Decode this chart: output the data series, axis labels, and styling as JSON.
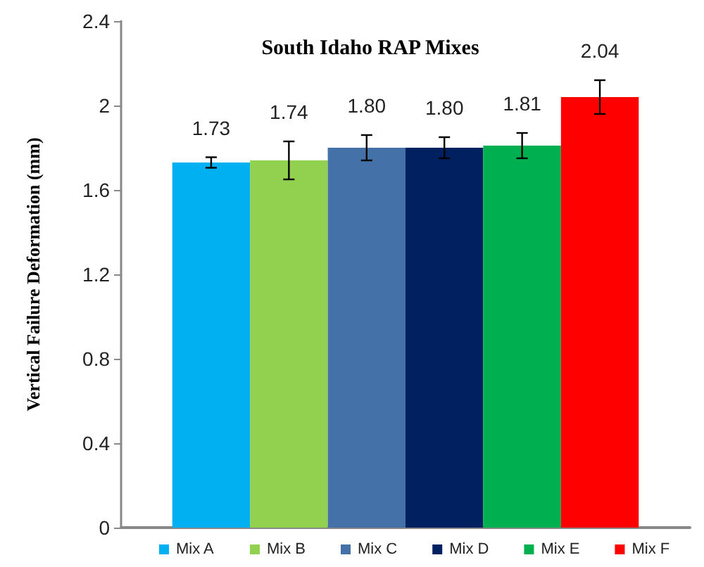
{
  "chart_data": {
    "type": "bar",
    "title": "South Idaho RAP Mixes",
    "ylabel": "Vertical Failure Deformation (mm)",
    "categories": [
      null
    ],
    "series": [
      {
        "name": "Mix A",
        "color": "#00b0f0",
        "values": [
          1.73
        ],
        "errors": [
          0.025
        ],
        "value_labels": [
          "1.73"
        ]
      },
      {
        "name": "Mix B",
        "color": "#92d050",
        "values": [
          1.74
        ],
        "errors": [
          0.09
        ],
        "value_labels": [
          "1.74"
        ]
      },
      {
        "name": "Mix C",
        "color": "#4472a8",
        "values": [
          1.8
        ],
        "errors": [
          0.06
        ],
        "value_labels": [
          "1.80"
        ]
      },
      {
        "name": "Mix D",
        "color": "#002060",
        "values": [
          1.8
        ],
        "errors": [
          0.05
        ],
        "value_labels": [
          "1.80"
        ]
      },
      {
        "name": "Mix E",
        "color": "#00b050",
        "values": [
          1.81
        ],
        "errors": [
          0.06
        ],
        "value_labels": [
          "1.81"
        ]
      },
      {
        "name": "Mix F",
        "color": "#ff0000",
        "values": [
          2.04
        ],
        "errors": [
          0.08
        ],
        "value_labels": [
          "2.04"
        ]
      }
    ],
    "ylim": [
      0,
      2.4
    ],
    "yticks": [
      0,
      0.4,
      0.8,
      1.2,
      1.6,
      2,
      2.4
    ],
    "grid": false,
    "legend": "bottom"
  }
}
